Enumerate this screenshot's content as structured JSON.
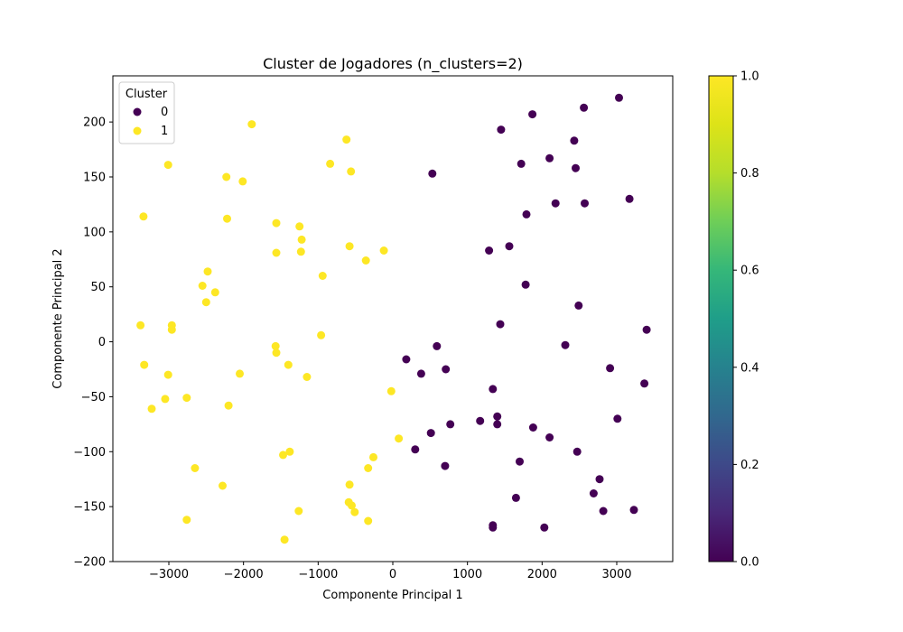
{
  "chart_data": {
    "type": "scatter",
    "title": "Cluster de Jogadores (n_clusters=2)",
    "xlabel": "Componente Principal 1",
    "ylabel": "Componente Principal 2",
    "xlim": [
      -3750,
      3750
    ],
    "ylim": [
      -200,
      242
    ],
    "xticks": [
      -3000,
      -2000,
      -1000,
      0,
      1000,
      2000,
      3000
    ],
    "yticks": [
      -200,
      -150,
      -100,
      -50,
      0,
      50,
      100,
      150,
      200
    ],
    "grid": false,
    "legend": {
      "title": "Cluster",
      "placement": "upper-left",
      "entries": [
        {
          "label": "0",
          "color": "#440154"
        },
        {
          "label": "1",
          "color": "#fde725"
        }
      ]
    },
    "colorbar": {
      "min": 0.0,
      "max": 1.0,
      "ticks": [
        "0.0",
        "0.2",
        "0.4",
        "0.6",
        "0.8",
        "1.0"
      ],
      "colormap": "viridis"
    },
    "series": [
      {
        "name": "0",
        "color": "#440154",
        "points": [
          [
            3030,
            222
          ],
          [
            2560,
            213
          ],
          [
            1870,
            207
          ],
          [
            1450,
            193
          ],
          [
            2430,
            183
          ],
          [
            1720,
            162
          ],
          [
            2100,
            167
          ],
          [
            2450,
            158
          ],
          [
            530,
            153
          ],
          [
            3170,
            130
          ],
          [
            2180,
            126
          ],
          [
            2570,
            126
          ],
          [
            1790,
            116
          ],
          [
            1560,
            87
          ],
          [
            1290,
            83
          ],
          [
            1780,
            52
          ],
          [
            2490,
            33
          ],
          [
            1440,
            16
          ],
          [
            3400,
            11
          ],
          [
            590,
            -4
          ],
          [
            2310,
            -3
          ],
          [
            180,
            -16
          ],
          [
            380,
            -29
          ],
          [
            710,
            -25
          ],
          [
            2910,
            -24
          ],
          [
            3370,
            -38
          ],
          [
            1340,
            -43
          ],
          [
            1400,
            -68
          ],
          [
            1400,
            -75
          ],
          [
            1170,
            -72
          ],
          [
            3010,
            -70
          ],
          [
            770,
            -75
          ],
          [
            1880,
            -78
          ],
          [
            510,
            -83
          ],
          [
            2100,
            -87
          ],
          [
            300,
            -98
          ],
          [
            2470,
            -100
          ],
          [
            700,
            -113
          ],
          [
            1700,
            -109
          ],
          [
            2770,
            -125
          ],
          [
            2690,
            -138
          ],
          [
            1650,
            -142
          ],
          [
            2820,
            -154
          ],
          [
            3230,
            -153
          ],
          [
            1340,
            -167
          ],
          [
            1340,
            -169
          ],
          [
            2030,
            -169
          ]
        ]
      },
      {
        "name": "1",
        "color": "#fde725",
        "points": [
          [
            -1890,
            198
          ],
          [
            -620,
            184
          ],
          [
            -3010,
            161
          ],
          [
            -840,
            162
          ],
          [
            -560,
            155
          ],
          [
            -2230,
            150
          ],
          [
            -2010,
            146
          ],
          [
            -3340,
            114
          ],
          [
            -2220,
            112
          ],
          [
            -1560,
            108
          ],
          [
            -1250,
            105
          ],
          [
            -1220,
            93
          ],
          [
            -580,
            87
          ],
          [
            -1560,
            81
          ],
          [
            -1230,
            82
          ],
          [
            -120,
            83
          ],
          [
            -360,
            74
          ],
          [
            -2480,
            64
          ],
          [
            -940,
            60
          ],
          [
            -2550,
            51
          ],
          [
            -2380,
            45
          ],
          [
            -2500,
            36
          ],
          [
            -3380,
            15
          ],
          [
            -2960,
            15
          ],
          [
            -2960,
            11
          ],
          [
            -960,
            6
          ],
          [
            -1570,
            -4
          ],
          [
            -1560,
            -10
          ],
          [
            -1400,
            -21
          ],
          [
            -3330,
            -21
          ],
          [
            -3010,
            -30
          ],
          [
            -2050,
            -29
          ],
          [
            -1150,
            -32
          ],
          [
            -20,
            -45
          ],
          [
            -3050,
            -52
          ],
          [
            -2760,
            -51
          ],
          [
            -3230,
            -61
          ],
          [
            -2200,
            -58
          ],
          [
            80,
            -88
          ],
          [
            -1380,
            -100
          ],
          [
            -1470,
            -103
          ],
          [
            -260,
            -105
          ],
          [
            -330,
            -115
          ],
          [
            -2650,
            -115
          ],
          [
            -580,
            -130
          ],
          [
            -2280,
            -131
          ],
          [
            -590,
            -146
          ],
          [
            -550,
            -149
          ],
          [
            -510,
            -155
          ],
          [
            -1260,
            -154
          ],
          [
            -330,
            -163
          ],
          [
            -2760,
            -162
          ],
          [
            -1450,
            -180
          ]
        ]
      }
    ]
  }
}
